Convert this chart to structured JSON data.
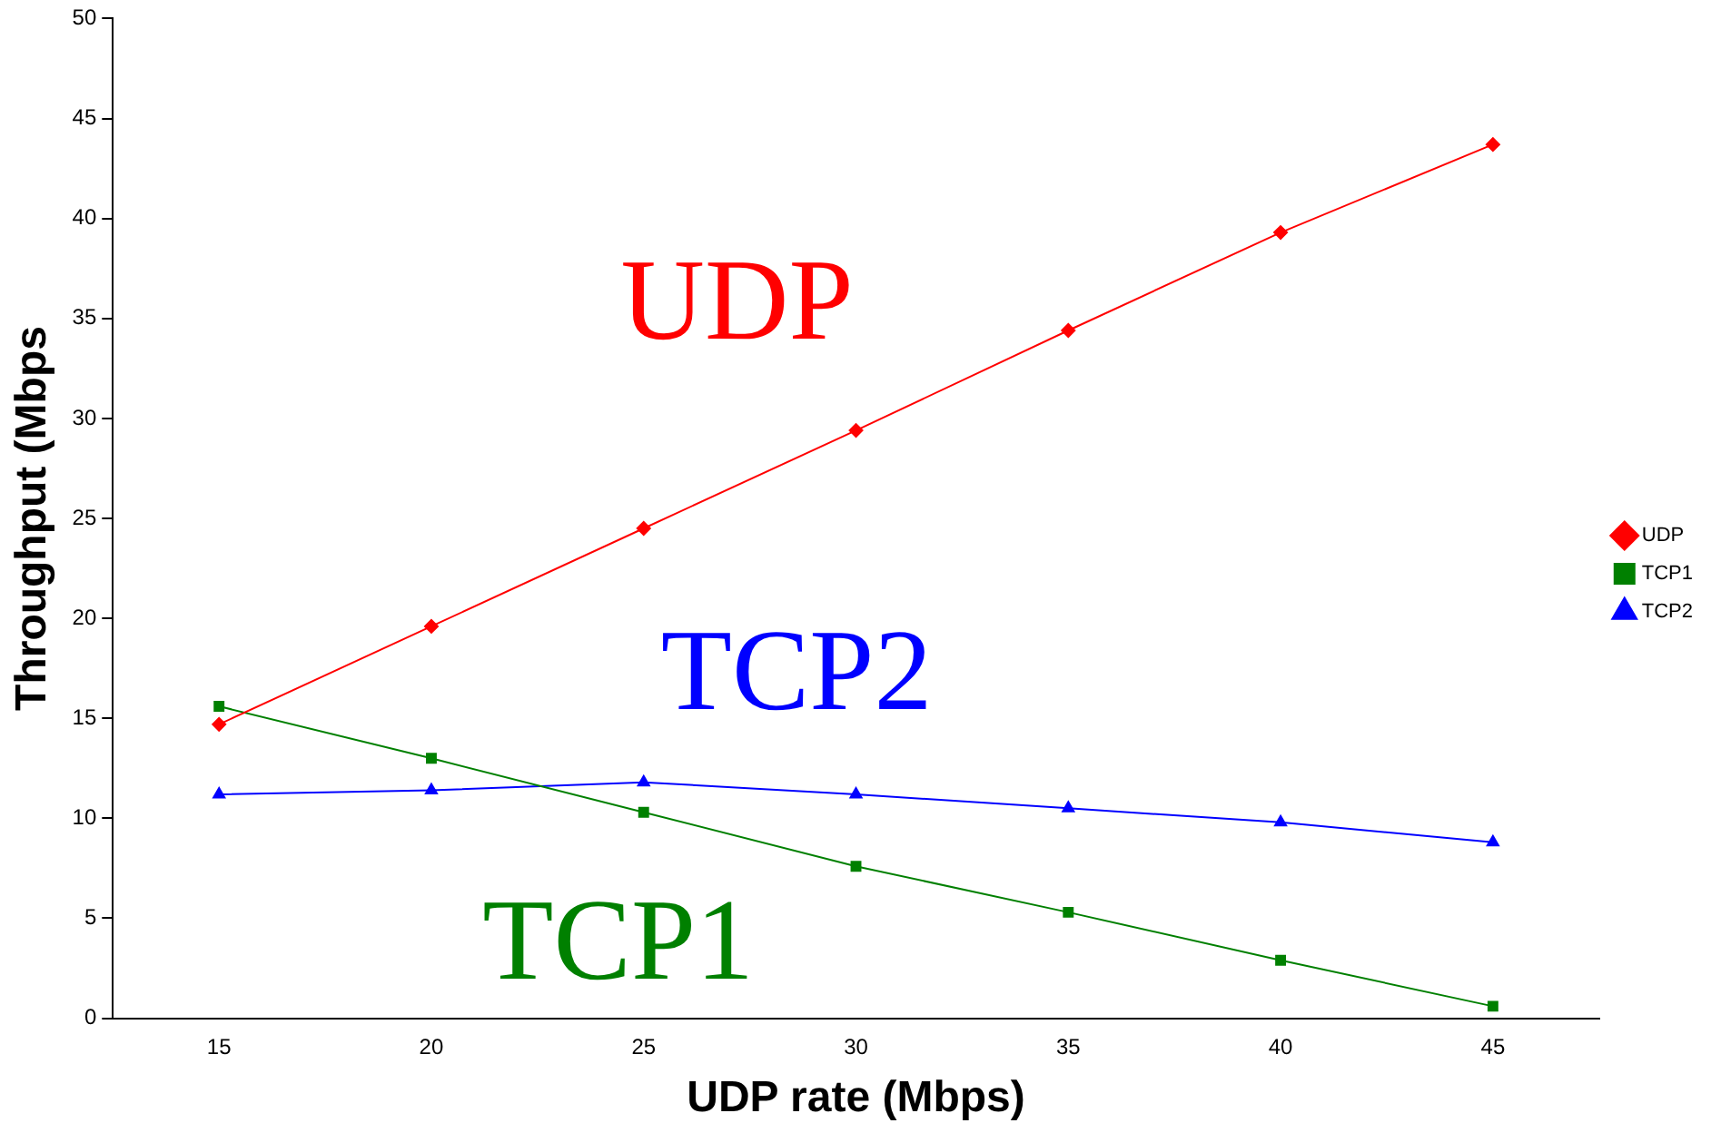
{
  "chart_data": {
    "type": "line",
    "xlabel": "UDP rate (Mbps)",
    "ylabel": "Throughput (Mbps",
    "categories": [
      "15",
      "20",
      "25",
      "30",
      "35",
      "40",
      "45"
    ],
    "series": [
      {
        "name": "UDP",
        "color": "#ff0000",
        "marker": "diamond",
        "values": [
          14.7,
          19.6,
          24.5,
          29.4,
          34.4,
          39.3,
          43.7
        ]
      },
      {
        "name": "TCP1",
        "color": "#008000",
        "marker": "square",
        "values": [
          15.6,
          13.0,
          10.3,
          7.6,
          5.3,
          2.9,
          0.6
        ]
      },
      {
        "name": "TCP2",
        "color": "#0000ff",
        "marker": "triangle",
        "values": [
          11.2,
          11.4,
          11.8,
          11.2,
          10.5,
          9.8,
          8.8
        ]
      }
    ],
    "ylim": [
      0,
      50
    ],
    "yticks": [
      0,
      5,
      10,
      15,
      20,
      25,
      30,
      35,
      40,
      45,
      50
    ],
    "grid": false,
    "legend": "right",
    "line_style": "solid"
  }
}
